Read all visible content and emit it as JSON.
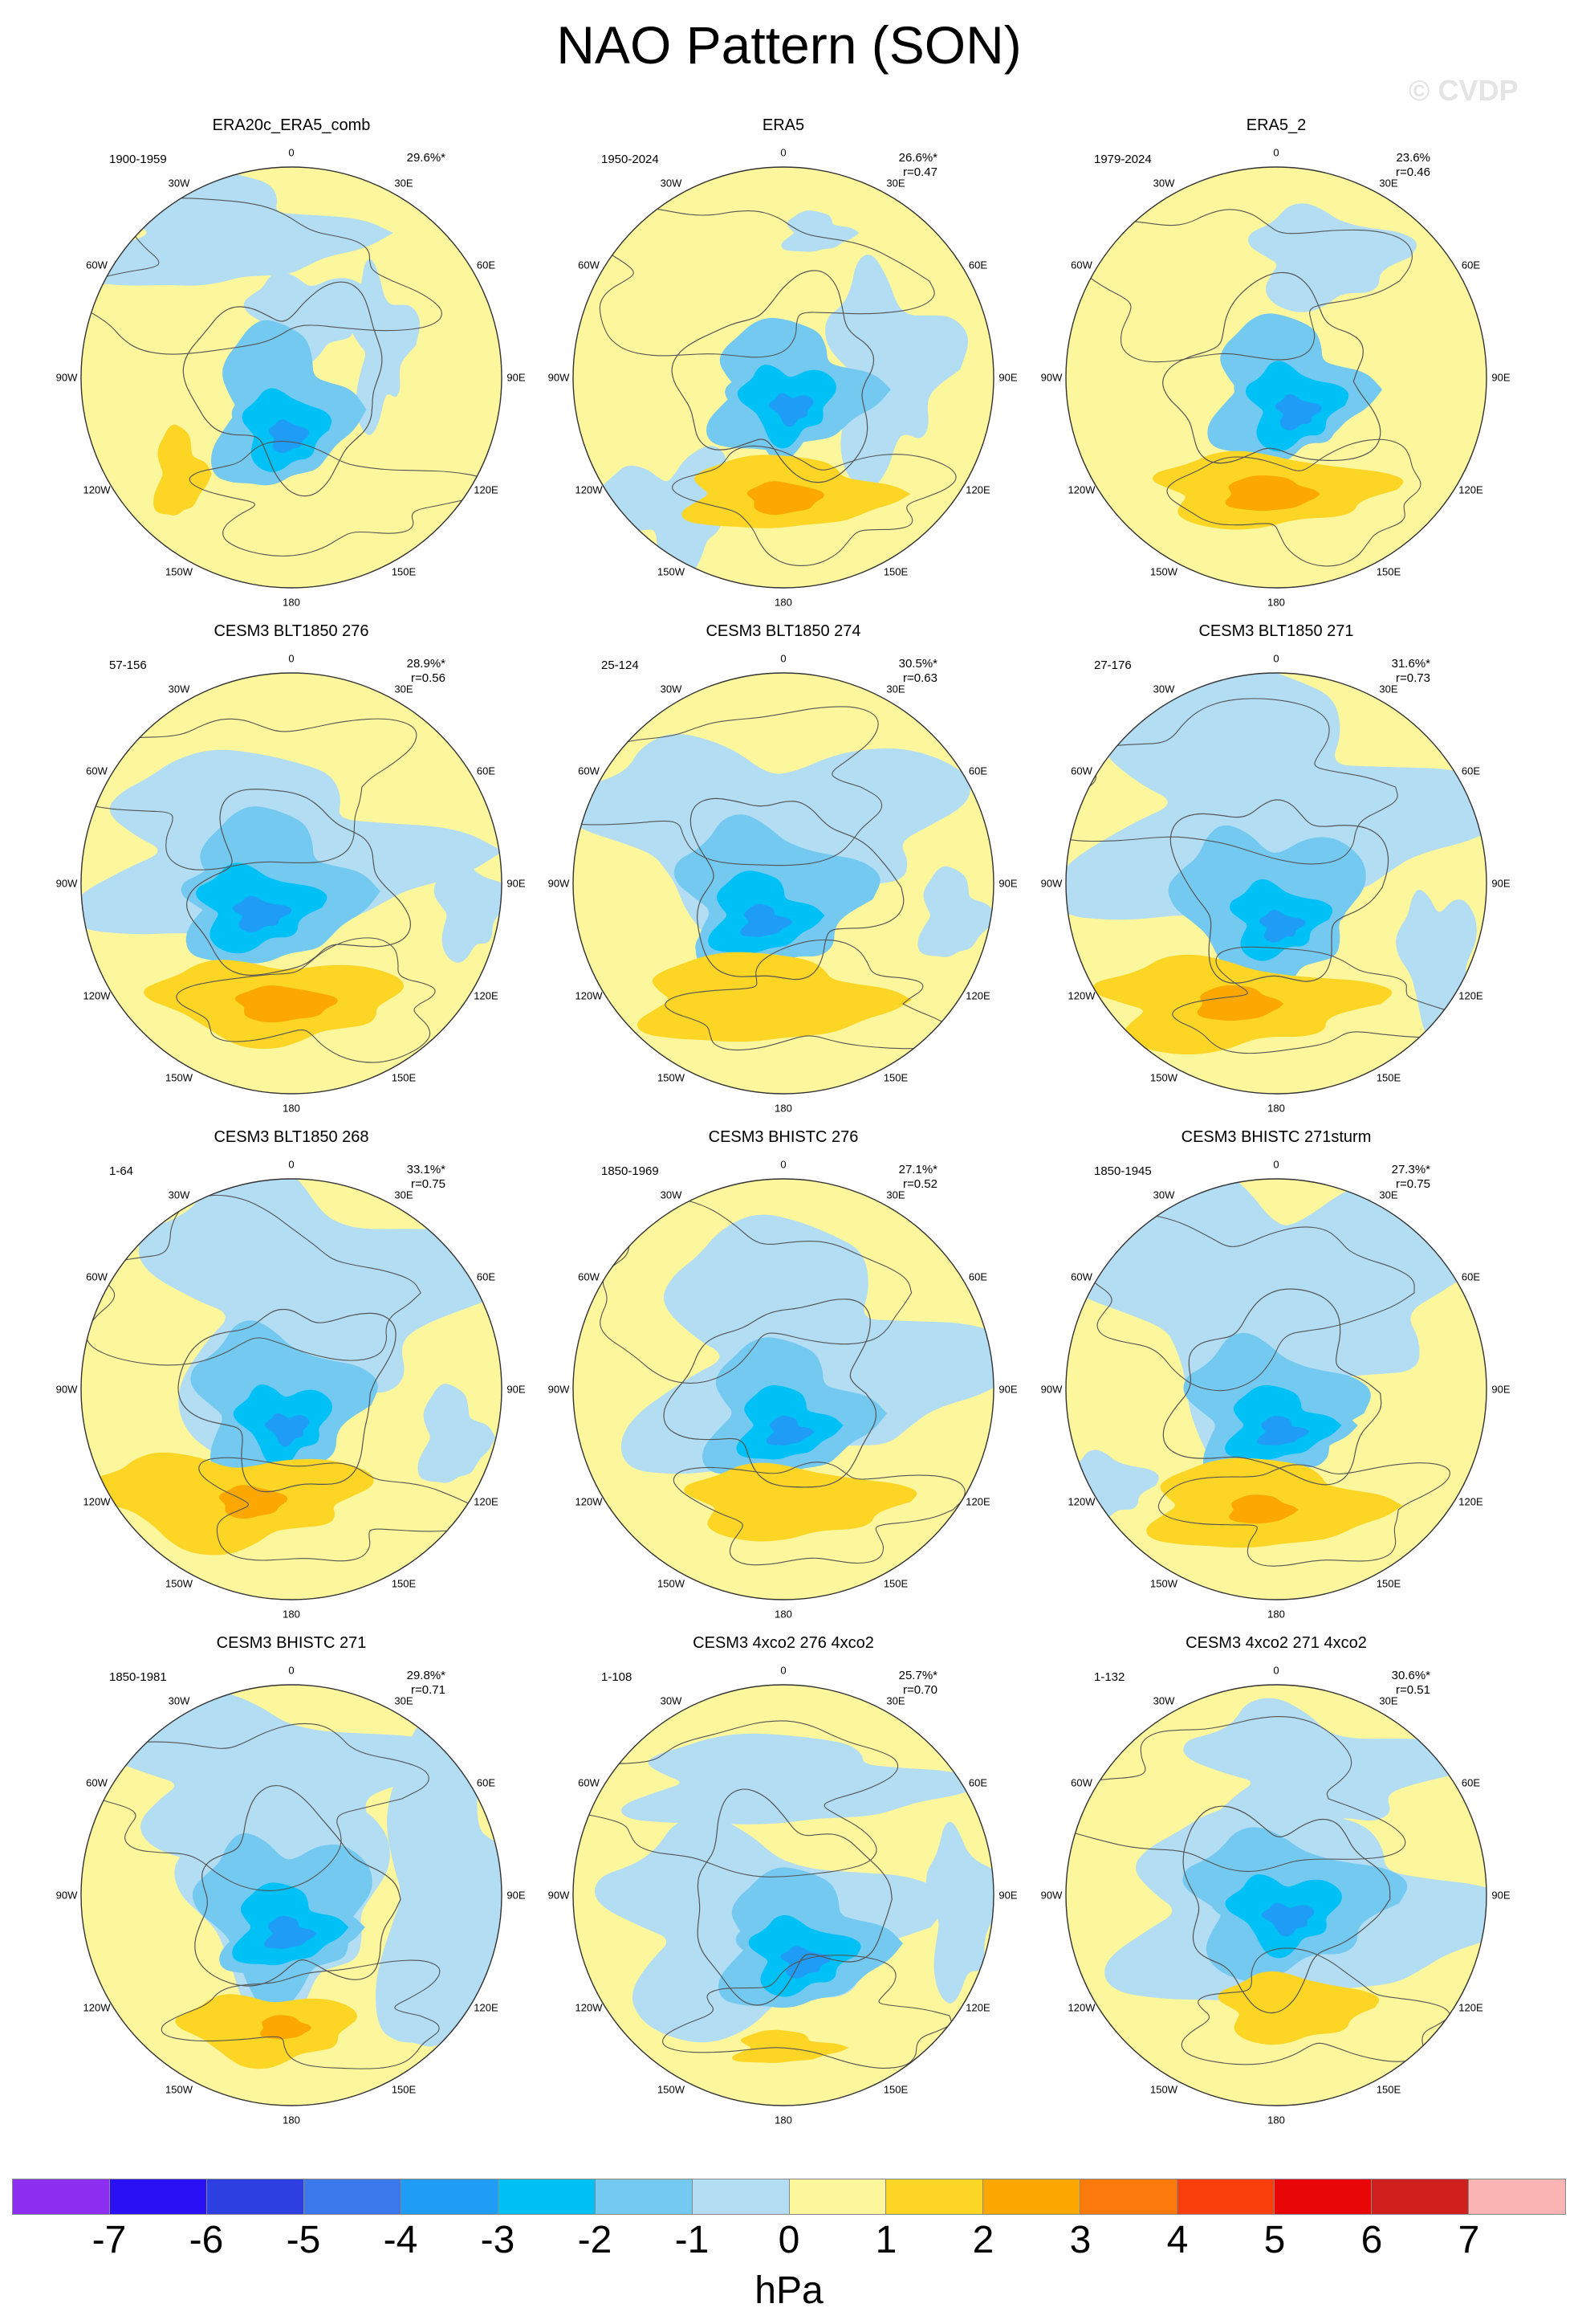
{
  "title": "NAO Pattern (SON)",
  "watermark": "© CVDP",
  "longitude_labels": [
    "180",
    "150E",
    "120E",
    "90E",
    "60E",
    "30E",
    "0",
    "30W",
    "60W",
    "90W",
    "120W",
    "150W"
  ],
  "panels": [
    {
      "title": "ERA20c_ERA5_comb",
      "years": "1900-1959",
      "pct": "29.6%*",
      "r": ""
    },
    {
      "title": "ERA5",
      "years": "1950-2024",
      "pct": "26.6%*",
      "r": "r=0.47"
    },
    {
      "title": "ERA5_2",
      "years": "1979-2024",
      "pct": "23.6%",
      "r": "r=0.46"
    },
    {
      "title": "CESM3 BLT1850 276",
      "years": "57-156",
      "pct": "28.9%*",
      "r": "r=0.56"
    },
    {
      "title": "CESM3 BLT1850 274",
      "years": "25-124",
      "pct": "30.5%*",
      "r": "r=0.63"
    },
    {
      "title": "CESM3 BLT1850 271",
      "years": "27-176",
      "pct": "31.6%*",
      "r": "r=0.73"
    },
    {
      "title": "CESM3 BLT1850 268",
      "years": "1-64",
      "pct": "33.1%*",
      "r": "r=0.75"
    },
    {
      "title": "CESM3 BHISTC 276",
      "years": "1850-1969",
      "pct": "27.1%*",
      "r": "r=0.52"
    },
    {
      "title": "CESM3 BHISTC 271sturm",
      "years": "1850-1945",
      "pct": "27.3%*",
      "r": "r=0.75"
    },
    {
      "title": "CESM3 BHISTC 271",
      "years": "1850-1981",
      "pct": "29.8%*",
      "r": "r=0.71"
    },
    {
      "title": "CESM3 4xco2 276 4xco2",
      "years": "1-108",
      "pct": "25.7%*",
      "r": "r=0.70"
    },
    {
      "title": "CESM3 4xco2 271 4xco2",
      "years": "1-132",
      "pct": "30.6%*",
      "r": "r=0.51"
    }
  ],
  "colorbar": {
    "colors": [
      "#8c2ff0",
      "#2a11f5",
      "#2d3fe0",
      "#3a78ec",
      "#1f9cf6",
      "#00c1f6",
      "#74c9f1",
      "#b2ddf3",
      "#fcf69c",
      "#fcd525",
      "#fca800",
      "#fa7a0c",
      "#fa3e0c",
      "#e90606",
      "#d0201e",
      "#fbb4b4"
    ],
    "ticks": [
      "-7",
      "-6",
      "-5",
      "-4",
      "-3",
      "-2",
      "-1",
      "0",
      "1",
      "2",
      "3",
      "4",
      "5",
      "6",
      "7"
    ],
    "unit": "hPa"
  }
}
